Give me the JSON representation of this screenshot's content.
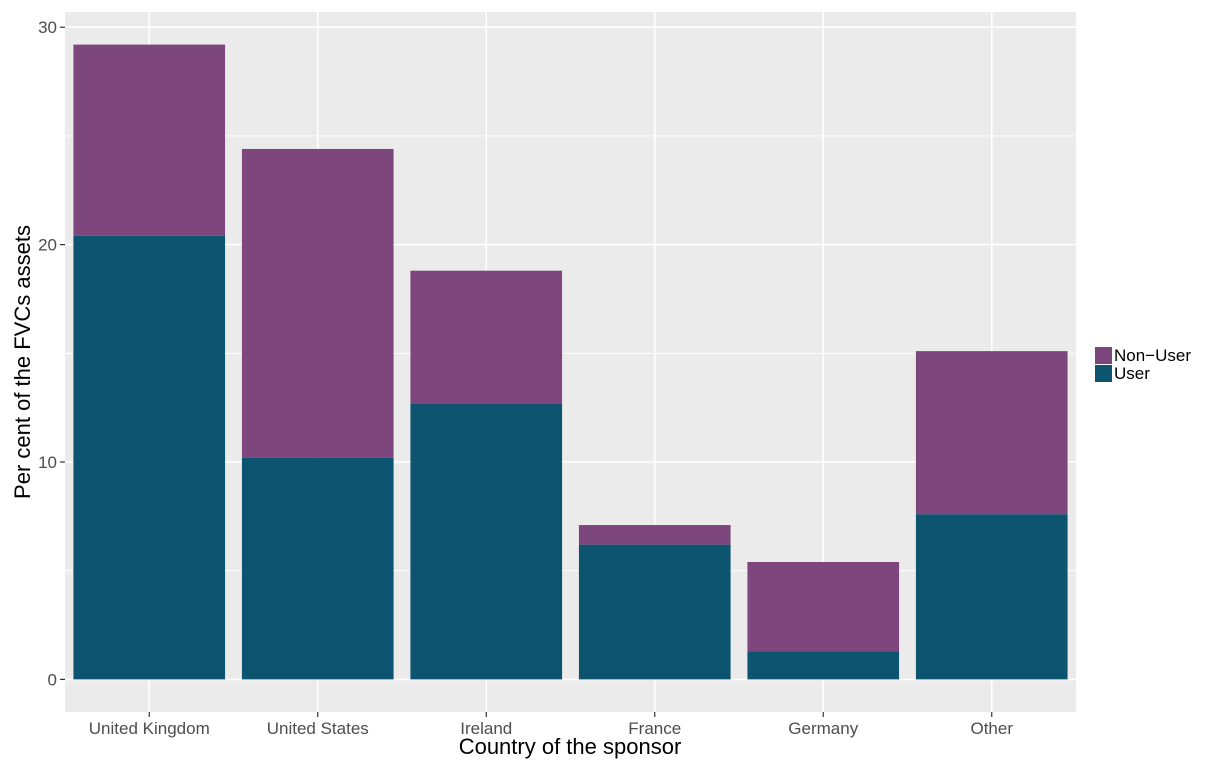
{
  "chart_data": {
    "type": "bar",
    "stacked": true,
    "categories": [
      "United Kingdom",
      "United States",
      "Ireland",
      "France",
      "Germany",
      "Other"
    ],
    "series": [
      {
        "name": "User",
        "color": "#0c546f",
        "values": [
          20.4,
          10.2,
          12.7,
          6.2,
          1.3,
          7.6
        ]
      },
      {
        "name": "Non−User",
        "color": "#7d477d",
        "values": [
          8.8,
          14.2,
          6.1,
          0.9,
          4.1,
          7.5
        ]
      }
    ],
    "legend_order": [
      "Non−User",
      "User"
    ],
    "legend_position": "right",
    "xlabel": "Country of the sponsor",
    "ylabel": "Per cent of the FVCs assets",
    "ylim": [
      -1.5,
      30.7
    ],
    "yticks": [
      0,
      10,
      20,
      30
    ],
    "grid": true,
    "panel_color": "#ebebeb",
    "grid_color": "#ffffff"
  }
}
